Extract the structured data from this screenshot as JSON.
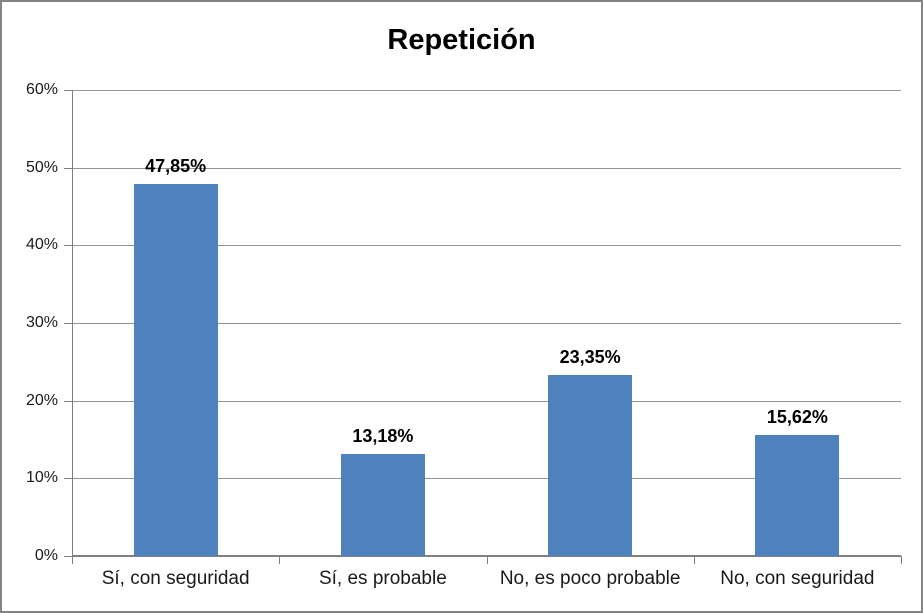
{
  "chart_data": {
    "type": "bar",
    "title": "Repetición",
    "categories": [
      "Sí, con seguridad",
      "Sí, es probable",
      "No, es poco probable",
      "No, con seguridad"
    ],
    "values": [
      47.85,
      13.18,
      23.35,
      15.62
    ],
    "data_labels": [
      "47,85%",
      "13,18%",
      "23,35%",
      "15,62%"
    ],
    "ylim": [
      0,
      60
    ],
    "ytick_step": 10,
    "ytick_labels": [
      "0%",
      "10%",
      "20%",
      "30%",
      "40%",
      "50%",
      "60%"
    ],
    "grid": true,
    "legend": "none",
    "xlabel": "",
    "ylabel": "",
    "bar_color": "#4F81BD",
    "gridline_color": "#949494",
    "axis_color": "#7f7f7f",
    "title_color": "#000000",
    "tick_label_color": "#1a1a1a"
  }
}
